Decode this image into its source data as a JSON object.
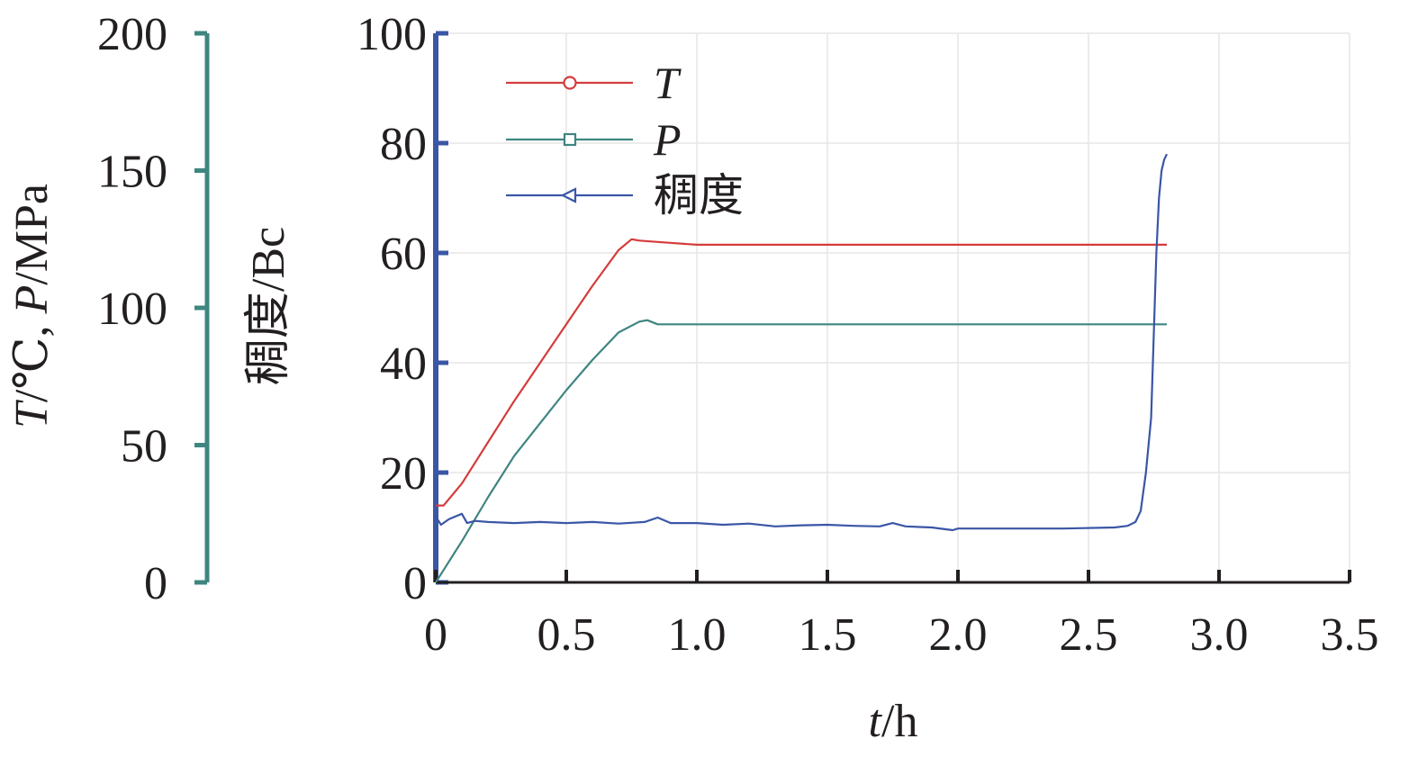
{
  "chart_data": {
    "type": "line",
    "x_axis": {
      "label_var": "t",
      "label_unit": "/h",
      "range": [
        0,
        3.5
      ],
      "ticks": [
        0,
        0.5,
        1.0,
        1.5,
        2.0,
        2.5,
        3.0,
        3.5
      ],
      "tick_labels": [
        "0",
        "0.5",
        "1.0",
        "1.5",
        "2.0",
        "2.5",
        "3.0",
        "3.5"
      ]
    },
    "y_axis_inner": {
      "label": "稠度/Bc",
      "range": [
        0,
        100
      ],
      "ticks": [
        0,
        20,
        40,
        60,
        80,
        100
      ],
      "tick_labels": [
        "0",
        "20",
        "40",
        "60",
        "80",
        "100"
      ],
      "color": "#3a56a6"
    },
    "y_axis_outer": {
      "label_var_t": "T",
      "label_mid": "/℃, ",
      "label_var_p": "P",
      "label_unit": "/MPa",
      "range": [
        0,
        200
      ],
      "ticks": [
        0,
        50,
        100,
        150,
        200
      ],
      "tick_labels": [
        "0",
        "50",
        "100",
        "150",
        "200"
      ],
      "color": "#3f8580"
    },
    "grid": true,
    "legend_position": "top-left",
    "series": [
      {
        "name": "T",
        "italic": true,
        "axis": "outer",
        "color": "#d43c3c",
        "marker": "circle",
        "x": [
          0,
          0.03,
          0.1,
          0.2,
          0.3,
          0.4,
          0.5,
          0.6,
          0.7,
          0.75,
          0.78,
          0.85,
          1.0,
          1.5,
          2.0,
          2.5,
          2.8
        ],
        "y": [
          28,
          28,
          36,
          51,
          66,
          80,
          94,
          108,
          121,
          125,
          124.5,
          124,
          123,
          123,
          123,
          123,
          123
        ]
      },
      {
        "name": "P",
        "italic": true,
        "axis": "outer",
        "color": "#3f8580",
        "marker": "square",
        "x": [
          0,
          0.1,
          0.2,
          0.3,
          0.4,
          0.5,
          0.6,
          0.7,
          0.78,
          0.81,
          0.85,
          1.0,
          1.5,
          2.0,
          2.5,
          2.8
        ],
        "y": [
          0,
          15,
          31,
          46,
          58,
          70,
          81,
          91,
          95,
          95.5,
          94,
          94,
          94,
          94,
          94,
          94
        ]
      },
      {
        "name": "稠度",
        "italic": false,
        "axis": "inner",
        "color": "#3a56a6",
        "marker": "triangle-left",
        "x": [
          0,
          0.02,
          0.05,
          0.1,
          0.12,
          0.15,
          0.2,
          0.3,
          0.4,
          0.5,
          0.6,
          0.7,
          0.8,
          0.85,
          0.9,
          1.0,
          1.1,
          1.2,
          1.3,
          1.4,
          1.5,
          1.6,
          1.7,
          1.75,
          1.8,
          1.9,
          1.98,
          2.0,
          2.2,
          2.4,
          2.6,
          2.65,
          2.68,
          2.7,
          2.72,
          2.74,
          2.75,
          2.76,
          2.77,
          2.78,
          2.79,
          2.8
        ],
        "y": [
          12,
          10.5,
          11.5,
          12.5,
          10.8,
          11.2,
          11,
          10.8,
          11,
          10.8,
          11,
          10.7,
          11,
          11.8,
          10.8,
          10.8,
          10.5,
          10.7,
          10.2,
          10.4,
          10.5,
          10.3,
          10.2,
          10.8,
          10.2,
          10,
          9.5,
          9.8,
          9.8,
          9.8,
          10,
          10.3,
          11,
          13,
          20,
          30,
          45,
          60,
          70,
          75,
          77,
          78
        ]
      }
    ]
  }
}
